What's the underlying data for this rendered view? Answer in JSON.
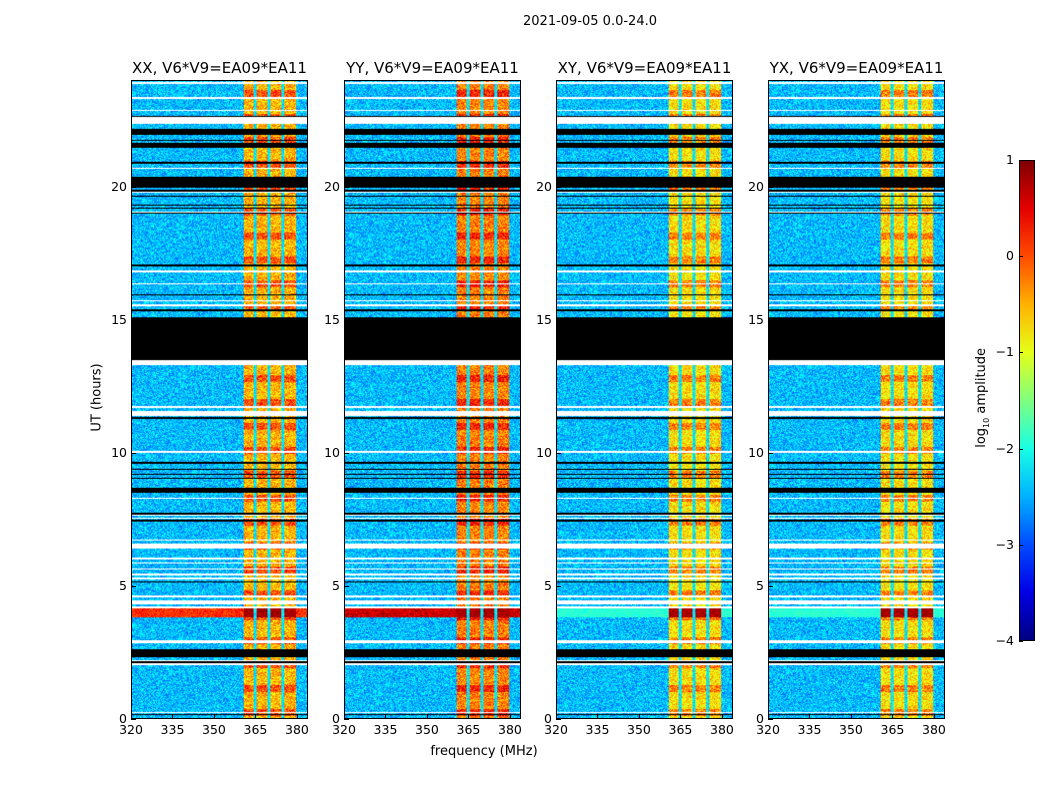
{
  "chart_data": {
    "type": "heatmap",
    "title": "2021-09-05 0.0-24.0",
    "xlabel": "frequency (MHz)",
    "ylabel": "UT (hours)",
    "xlim": [
      320,
      384
    ],
    "ylim": [
      0,
      24
    ],
    "xticks": [
      "320",
      "335",
      "350",
      "365",
      "380"
    ],
    "xtick_values": [
      320,
      335,
      350,
      365,
      380
    ],
    "yticks": [
      "0",
      "5",
      "10",
      "15",
      "20"
    ],
    "ytick_values": [
      0,
      5,
      10,
      15,
      20
    ],
    "panels": [
      {
        "title": "XX, V6*V9=EA09*EA11",
        "burst_level": 0.9,
        "band_level": 0.6
      },
      {
        "title": "YY, V6*V9=EA09*EA11",
        "burst_level": 1.0,
        "band_level": 0.65
      },
      {
        "title": "XY, V6*V9=EA09*EA11",
        "burst_level": 0.45,
        "band_level": 0.55
      },
      {
        "title": "YX, V6*V9=EA09*EA11",
        "burst_level": 0.45,
        "band_level": 0.55
      }
    ],
    "rfi_band_mhz": [
      360.5,
      380
    ],
    "rfi_subband_gaps_mhz": [
      364.8,
      370,
      375
    ],
    "flagged_hours": [
      [
        13.5,
        15.1
      ],
      [
        20.0,
        20.4
      ],
      [
        2.3,
        2.6
      ],
      [
        21.5,
        21.7
      ],
      [
        8.5,
        8.7
      ],
      [
        22.0,
        22.2
      ]
    ],
    "nodata_hours": [
      [
        22.4,
        22.7
      ],
      [
        11.4,
        11.6
      ],
      [
        6.4,
        6.6
      ],
      [
        2.0,
        2.2
      ],
      [
        13.3,
        13.5
      ],
      [
        4.3,
        4.45
      ]
    ],
    "burst_hours": [
      3.8,
      4.2
    ],
    "colorbar": {
      "label": "log",
      "label_sub": "10",
      "label_rest": " amplitude",
      "range": [
        -4,
        1
      ],
      "ticks": [
        "1",
        "0",
        "−1",
        "−2",
        "−3",
        "−4"
      ],
      "tick_values": [
        1,
        0,
        -1,
        -2,
        -3,
        -4
      ],
      "colormap": "jet"
    }
  }
}
